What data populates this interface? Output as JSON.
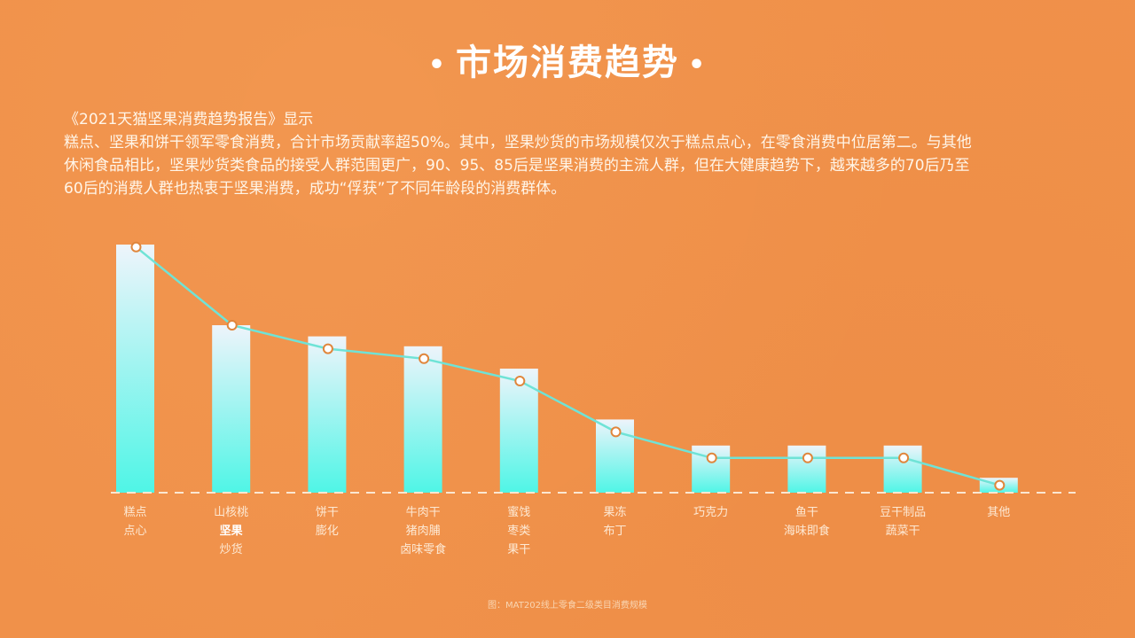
{
  "title": "市场消费趋势",
  "title_dot": "•",
  "intro": {
    "source_line": "《2021天猫坚果消费趋势报告》显示",
    "lines": [
      "糕点、坚果和饼干领军零食消费，合计市场贡献率超50%。其中，坚果炒货的市场规模仅次于糕点点心，在零食消费中位居第二。与其他",
      "休闲食品相比，坚果炒货类食品的接受人群范围更广，90、95、85后是坚果消费的主流人群，但在大健康趋势下，越来越多的70后乃至",
      "60后的消费人群也热衷于坚果消费，成功“俘获”了不同年龄段的消费群体。"
    ]
  },
  "caption": "图：MAT202线上零食二级类目消费规模",
  "colors": {
    "background": "#f0914a",
    "bar_top": "#eef4fb",
    "bar_bottom": "#4ff5e6",
    "line": "#6fe3d6",
    "marker_stroke": "#e0863c",
    "marker_fill": "#ffffff",
    "baseline": "#fbe7d2"
  },
  "chart_data": {
    "type": "bar",
    "title": "MAT202线上零食二级类目消费规模",
    "xlabel": "",
    "ylabel": "",
    "ylim": [
      0,
      100
    ],
    "grid": false,
    "legend": null,
    "categories": [
      [
        "糕点",
        "点心"
      ],
      [
        "山核桃",
        "坚果",
        "炒货"
      ],
      [
        "饼干",
        "膨化"
      ],
      [
        "牛肉干",
        "猪肉脯",
        "卤味零食"
      ],
      [
        "蜜饯",
        "枣类",
        "果干"
      ],
      [
        "果冻",
        "布丁"
      ],
      [
        "巧克力"
      ],
      [
        "鱼干",
        "海味即食"
      ],
      [
        "豆干制品",
        "蔬菜干"
      ],
      [
        "其他"
      ]
    ],
    "series": [
      {
        "name": "bars",
        "type": "bar",
        "values": [
          100,
          67.5,
          63,
          59,
          50,
          29.5,
          19,
          19,
          19,
          6
        ]
      },
      {
        "name": "trend",
        "type": "line",
        "values": [
          99,
          67.5,
          58,
          54,
          45,
          24.5,
          14,
          14,
          14,
          3
        ]
      }
    ],
    "annotations": [
      "坚果 (highlighted label)"
    ]
  }
}
